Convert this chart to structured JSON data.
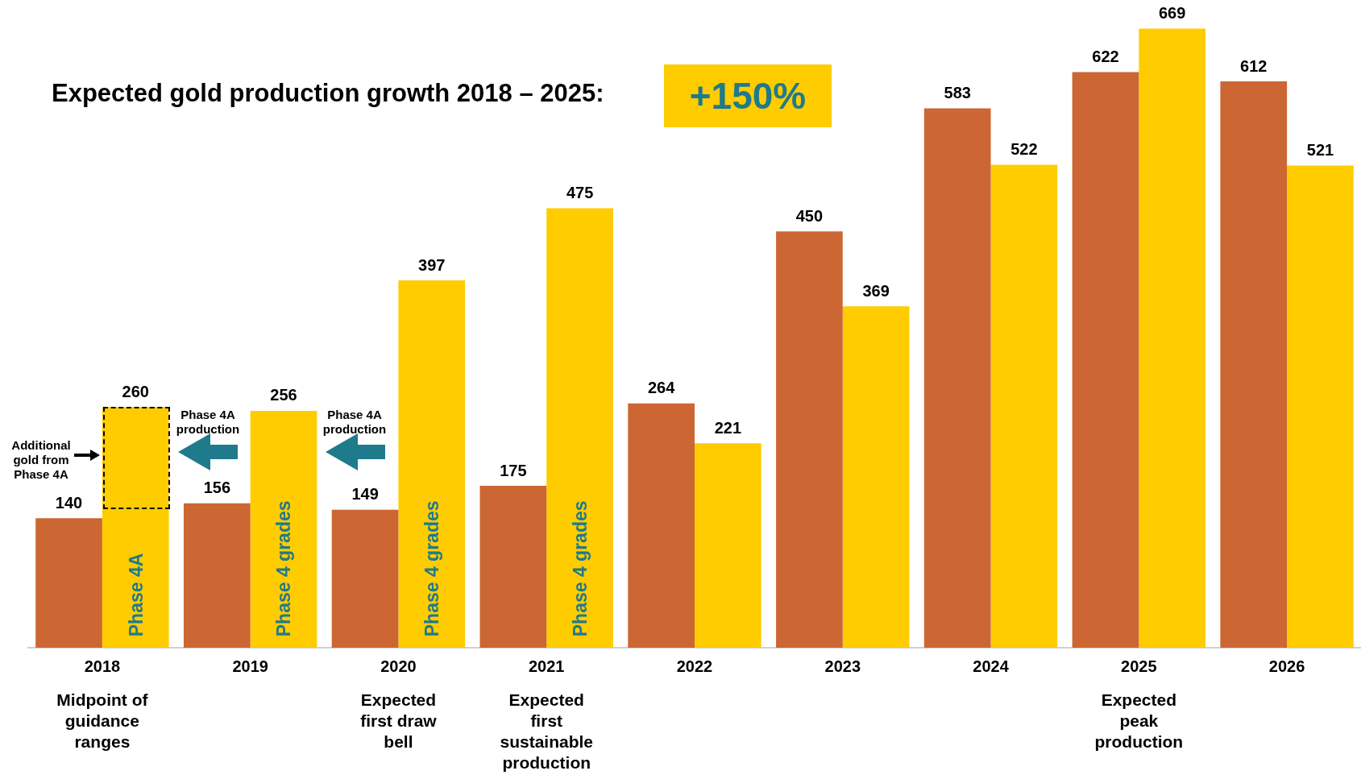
{
  "chart_data": {
    "type": "bar",
    "title": "Expected gold production growth 2018 – 2025:",
    "categories": [
      "2018",
      "2019",
      "2020",
      "2021",
      "2022",
      "2023",
      "2024",
      "2025",
      "2026"
    ],
    "series": [
      {
        "color": "#cc6633",
        "values": [
          140,
          156,
          149,
          175,
          264,
          450,
          583,
          622,
          612
        ]
      },
      {
        "color": "#ffcc00",
        "values": [
          260,
          256,
          397,
          475,
          221,
          369,
          522,
          669,
          521
        ]
      }
    ],
    "tick_labels": "x",
    "data_labels": true,
    "annotations": [
      "+150%",
      "Additional gold from Phase 4A",
      "Phase 4A production",
      "Phase 4A production",
      "Phase 4A",
      "Phase 4 grades",
      "Phase 4 grades",
      "Phase 4 grades",
      "Midpoint of guidance ranges",
      "Expected first draw bell",
      "Expected first sustainable production",
      "Expected peak production"
    ]
  }
}
